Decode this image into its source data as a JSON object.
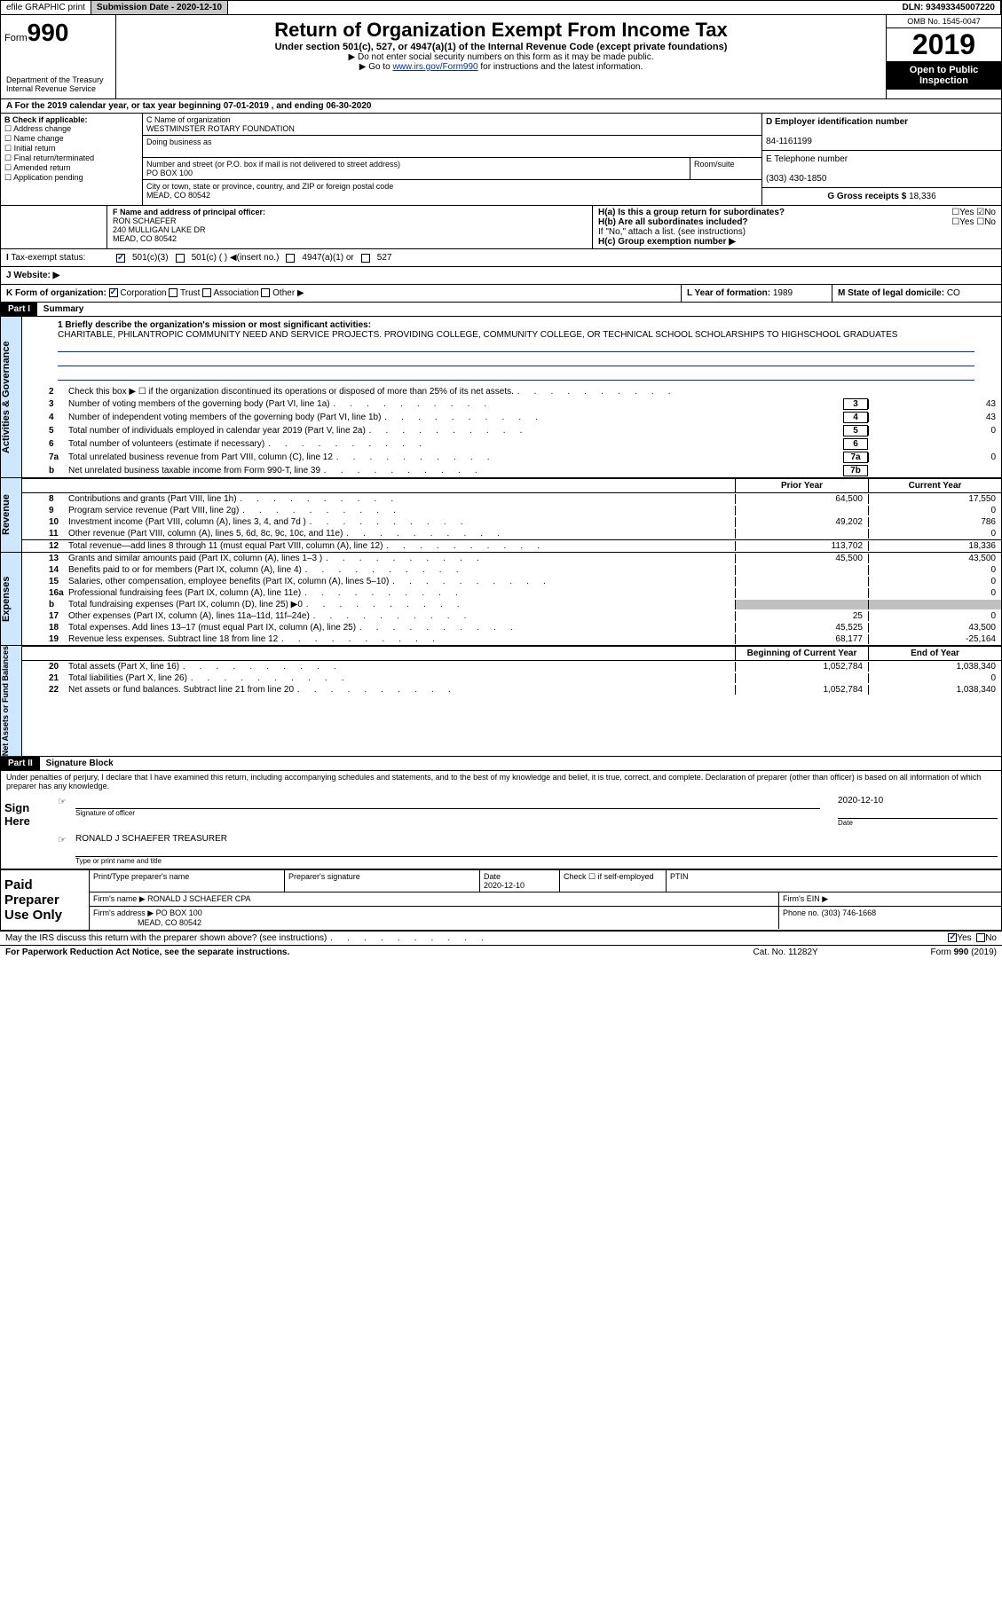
{
  "top": {
    "efile": "efile GRAPHIC print",
    "sub_label": "Submission Date",
    "sub_date": "2020-12-10",
    "dln": "DLN: 93493345007220"
  },
  "header": {
    "form_label": "Form",
    "form_num": "990",
    "title": "Return of Organization Exempt From Income Tax",
    "subtitle": "Under section 501(c), 527, or 4947(a)(1) of the Internal Revenue Code (except private foundations)",
    "note1": "▶ Do not enter social security numbers on this form as it may be made public.",
    "note2_pre": "▶ Go to ",
    "note2_link": "www.irs.gov/Form990",
    "note2_post": " for instructions and the latest information.",
    "omb": "OMB No. 1545-0047",
    "year": "2019",
    "open": "Open to Public Inspection",
    "dept": "Department of the Treasury Internal Revenue Service"
  },
  "period": "For the 2019 calendar year, or tax year beginning 07-01-2019   , and ending 06-30-2020",
  "boxB": {
    "label": "B Check if applicable:",
    "items": [
      "Address change",
      "Name change",
      "Initial return",
      "Final return/terminated",
      "Amended return",
      "Application pending"
    ]
  },
  "boxC": {
    "name_label": "C Name of organization",
    "name": "WESTMINSTER ROTARY FOUNDATION",
    "dba_label": "Doing business as",
    "addr_label": "Number and street (or P.O. box if mail is not delivered to street address)",
    "room_label": "Room/suite",
    "po": "PO BOX 100",
    "city_label": "City or town, state or province, country, and ZIP or foreign postal code",
    "city": "MEAD, CO  80542"
  },
  "boxD": {
    "label": "D Employer identification number",
    "ein": "84-1161199"
  },
  "boxE": {
    "label": "E Telephone number",
    "phone": "(303) 430-1850"
  },
  "boxG": {
    "label": "G Gross receipts $",
    "amount": "18,336"
  },
  "boxF": {
    "label": "F  Name and address of principal officer:",
    "name": "RON SCHAEFER",
    "addr1": "240 MULLIGAN LAKE DR",
    "addr2": "MEAD, CO  80542"
  },
  "boxH": {
    "a": "H(a)  Is this a group return for subordinates?",
    "b": "H(b)  Are all subordinates included?",
    "note": "If \"No,\" attach a list. (see instructions)",
    "c": "H(c)  Group exemption number ▶"
  },
  "boxI": {
    "label": "Tax-exempt status:",
    "opts": [
      "501(c)(3)",
      "501(c) (  ) ◀(insert no.)",
      "4947(a)(1) or",
      "527"
    ]
  },
  "boxJ": "J   Website: ▶",
  "boxK": "K Form of organization:",
  "k_opts": [
    "Corporation",
    "Trust",
    "Association",
    "Other ▶"
  ],
  "boxL": {
    "label": "L Year of formation:",
    "val": "1989"
  },
  "boxM": {
    "label": "M State of legal domicile:",
    "val": "CO"
  },
  "part1": {
    "label": "Part I",
    "title": "Summary"
  },
  "mission": {
    "label": "1  Briefly describe the organization's mission or most significant activities:",
    "text": "CHARITABLE, PHILANTROPIC COMMUNITY NEED AND SERVICE PROJECTS. PROVIDING COLLEGE, COMMUNITY COLLEGE, OR TECHNICAL SCHOOL SCHOLARSHIPS TO HIGHSCHOOL GRADUATES"
  },
  "sidebars": {
    "gov": "Activities & Governance",
    "rev": "Revenue",
    "exp": "Expenses",
    "net": "Net Assets or Fund Balances"
  },
  "lines_gov": [
    {
      "n": "2",
      "t": "Check this box ▶ ☐ if the organization discontinued its operations or disposed of more than 25% of its net assets."
    },
    {
      "n": "3",
      "t": "Number of voting members of the governing body (Part VI, line 1a)",
      "b": "3",
      "v": "43"
    },
    {
      "n": "4",
      "t": "Number of independent voting members of the governing body (Part VI, line 1b)",
      "b": "4",
      "v": "43"
    },
    {
      "n": "5",
      "t": "Total number of individuals employed in calendar year 2019 (Part V, line 2a)",
      "b": "5",
      "v": "0"
    },
    {
      "n": "6",
      "t": "Total number of volunteers (estimate if necessary)",
      "b": "6",
      "v": ""
    },
    {
      "n": "7a",
      "t": "Total unrelated business revenue from Part VIII, column (C), line 12",
      "b": "7a",
      "v": "0"
    },
    {
      "n": "b",
      "t": "Net unrelated business taxable income from Form 990-T, line 39",
      "b": "7b",
      "v": ""
    }
  ],
  "col_headers": {
    "prior": "Prior Year",
    "curr": "Current Year",
    "boy": "Beginning of Current Year",
    "eoy": "End of Year"
  },
  "lines_rev": [
    {
      "n": "8",
      "t": "Contributions and grants (Part VIII, line 1h)",
      "p": "64,500",
      "c": "17,550"
    },
    {
      "n": "9",
      "t": "Program service revenue (Part VIII, line 2g)",
      "p": "",
      "c": "0"
    },
    {
      "n": "10",
      "t": "Investment income (Part VIII, column (A), lines 3, 4, and 7d )",
      "p": "49,202",
      "c": "786"
    },
    {
      "n": "11",
      "t": "Other revenue (Part VIII, column (A), lines 5, 6d, 8c, 9c, 10c, and 11e)",
      "p": "",
      "c": "0"
    },
    {
      "n": "12",
      "t": "Total revenue—add lines 8 through 11 (must equal Part VIII, column (A), line 12)",
      "p": "113,702",
      "c": "18,336"
    }
  ],
  "lines_exp": [
    {
      "n": "13",
      "t": "Grants and similar amounts paid (Part IX, column (A), lines 1–3 )",
      "p": "45,500",
      "c": "43,500"
    },
    {
      "n": "14",
      "t": "Benefits paid to or for members (Part IX, column (A), line 4)",
      "p": "",
      "c": "0"
    },
    {
      "n": "15",
      "t": "Salaries, other compensation, employee benefits (Part IX, column (A), lines 5–10)",
      "p": "",
      "c": "0"
    },
    {
      "n": "16a",
      "t": "Professional fundraising fees (Part IX, column (A), line 11e)",
      "p": "",
      "c": "0"
    },
    {
      "n": "b",
      "t": "Total fundraising expenses (Part IX, column (D), line 25) ▶0",
      "p": "SHADED",
      "c": "SHADED"
    },
    {
      "n": "17",
      "t": "Other expenses (Part IX, column (A), lines 11a–11d, 11f–24e)",
      "p": "25",
      "c": "0"
    },
    {
      "n": "18",
      "t": "Total expenses. Add lines 13–17 (must equal Part IX, column (A), line 25)",
      "p": "45,525",
      "c": "43,500"
    },
    {
      "n": "19",
      "t": "Revenue less expenses. Subtract line 18 from line 12",
      "p": "68,177",
      "c": "-25,164"
    }
  ],
  "lines_net": [
    {
      "n": "20",
      "t": "Total assets (Part X, line 16)",
      "p": "1,052,784",
      "c": "1,038,340"
    },
    {
      "n": "21",
      "t": "Total liabilities (Part X, line 26)",
      "p": "",
      "c": "0"
    },
    {
      "n": "22",
      "t": "Net assets or fund balances. Subtract line 21 from line 20",
      "p": "1,052,784",
      "c": "1,038,340"
    }
  ],
  "part2": {
    "label": "Part II",
    "title": "Signature Block"
  },
  "sig": {
    "decl": "Under penalties of perjury, I declare that I have examined this return, including accompanying schedules and statements, and to the best of my knowledge and belief, it is true, correct, and complete. Declaration of preparer (other than officer) is based on all information of which preparer has any knowledge.",
    "here": "Sign Here",
    "off_label": "Signature of officer",
    "date_label": "Date",
    "date": "2020-12-10",
    "name": "RONALD J SCHAEFER TREASURER",
    "name_label": "Type or print name and title"
  },
  "prep": {
    "label": "Paid Preparer Use Only",
    "h1": "Print/Type preparer's name",
    "h2": "Preparer's signature",
    "h3": "Date",
    "date": "2020-12-10",
    "h4": "Check ☐ if self-employed",
    "h5": "PTIN",
    "firm_label": "Firm's name    ▶",
    "firm": "RONALD J SCHAEFER CPA",
    "ein_label": "Firm's EIN ▶",
    "addr_label": "Firm's address ▶",
    "addr1": "PO BOX 100",
    "addr2": "MEAD, CO  80542",
    "phone_label": "Phone no.",
    "phone": "(303) 746-1668"
  },
  "footer": {
    "discuss": "May the IRS discuss this return with the preparer shown above? (see instructions)",
    "yes": "Yes",
    "no": "No",
    "pra": "For Paperwork Reduction Act Notice, see the separate instructions.",
    "cat": "Cat. No. 11282Y",
    "form": "Form 990 (2019)"
  }
}
